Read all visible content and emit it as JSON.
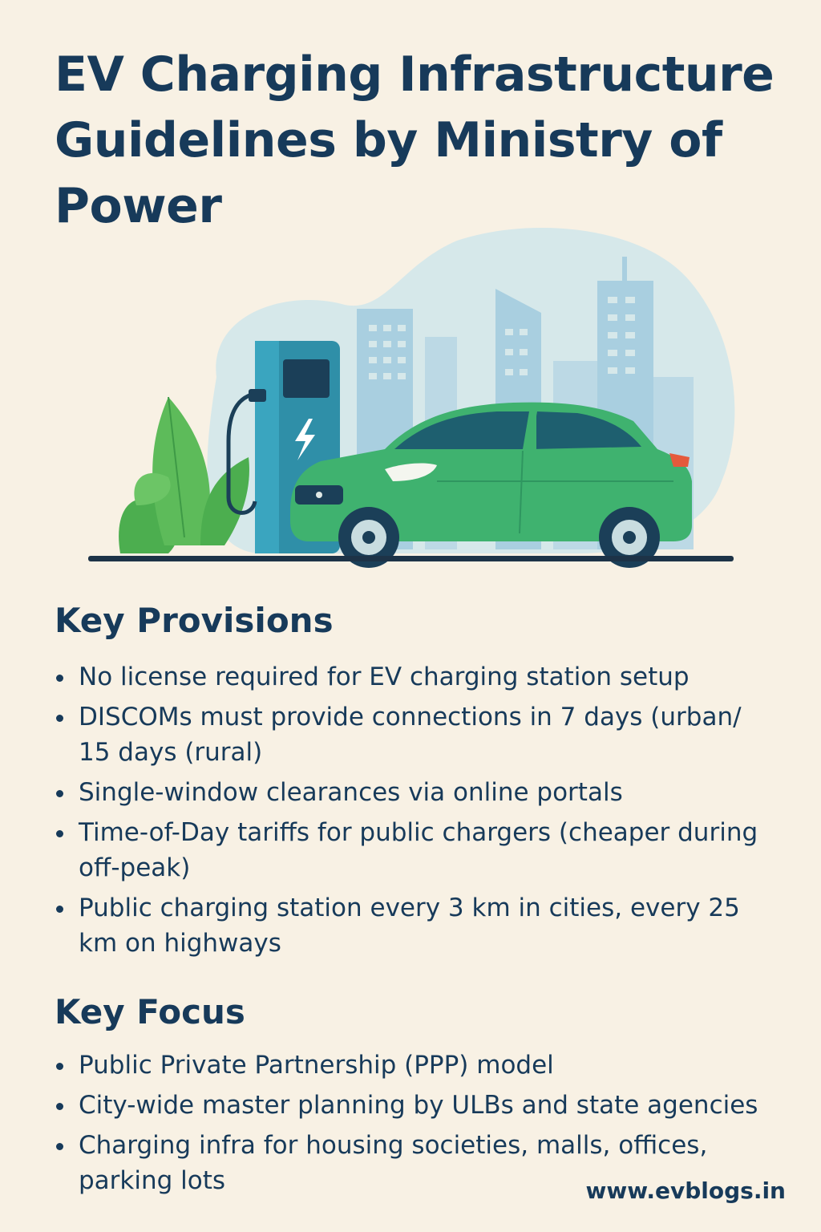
{
  "title": "EV Charging Infrastructure Guidelines by Ministry of Power",
  "illustration": {
    "icons": [
      "city-skyline-icon",
      "charging-station-icon",
      "lightning-bolt-icon",
      "leaf-icon",
      "electric-car-icon"
    ],
    "colors": {
      "background": "#f8f1e4",
      "sky_blob": "#d6e8ea",
      "buildings": "#a9cfe0",
      "charger": "#2f8fa8",
      "car": "#3fb26f",
      "leaf": "#5dbb5a",
      "ground": "#1d3347"
    }
  },
  "key_provisions": {
    "heading": "Key Provisions",
    "items": [
      "No license required for EV charging station setup",
      "DISCOMs must provide connections in 7 days (urban/ 15 days (rural)",
      "Single-window clearances via online portals",
      "Time-of-Day tariffs for public chargers (cheaper during off-peak)",
      "Public charging station every 3 km in cities, every 25 km on highways"
    ]
  },
  "key_focus": {
    "heading": "Key Focus",
    "items": [
      "Public Private Partnership (PPP) model",
      "City-wide master planning by ULBs and state agencies",
      "Charging infra for housing societies, malls, offices, parking lots"
    ]
  },
  "footer": {
    "website": "www.evblogs.in"
  }
}
